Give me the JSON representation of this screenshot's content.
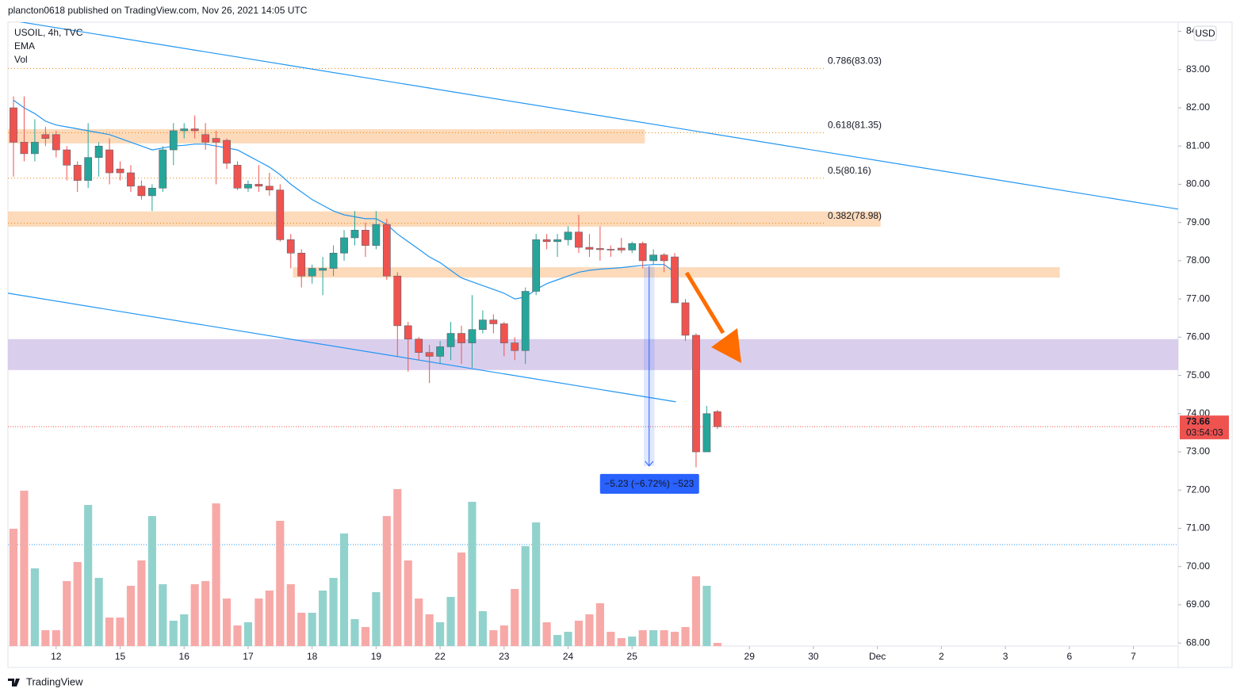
{
  "header": "plancton0618 published on TradingView.com, Nov 26, 2021 14:05 UTC",
  "footer": "TradingView",
  "chart_data": {
    "type": "candlestick",
    "legend": [
      "USOIL, 4h, TVC",
      "EMA",
      "Vol"
    ],
    "currency": "USD",
    "up_color": "#26a69a",
    "down_color": "#ef5350",
    "volume_up_color": "#92d2cc",
    "volume_down_color": "#f7a9a7",
    "ema_color": "#2196f3",
    "xlim": [
      -0.52,
      109.2
    ],
    "ylim": [
      67.92,
      84.24
    ],
    "vlim": [
      0,
      100
    ],
    "yticks": [
      {
        "value": 68,
        "label": "68.00"
      },
      {
        "value": 69,
        "label": "69.00"
      },
      {
        "value": 70,
        "label": "70.00"
      },
      {
        "value": 71,
        "label": "71.00"
      },
      {
        "value": 72,
        "label": "72.00"
      },
      {
        "value": 73,
        "label": "73.00"
      },
      {
        "value": 74,
        "label": "74.00"
      },
      {
        "value": 75,
        "label": "75.00"
      },
      {
        "value": 76,
        "label": "76.00"
      },
      {
        "value": 77,
        "label": "77.00"
      },
      {
        "value": 78,
        "label": "78.00"
      },
      {
        "value": 79,
        "label": "79.00"
      },
      {
        "value": 80,
        "label": "80.00"
      },
      {
        "value": 81,
        "label": "81.00"
      },
      {
        "value": 82,
        "label": "82.00"
      },
      {
        "value": 83,
        "label": "83.00"
      },
      {
        "value": 84,
        "label": "84.00"
      }
    ],
    "xticks": [
      {
        "value": 4,
        "label": "12"
      },
      {
        "value": 10,
        "label": "15"
      },
      {
        "value": 16,
        "label": "16"
      },
      {
        "value": 22,
        "label": "17"
      },
      {
        "value": 28,
        "label": "18"
      },
      {
        "value": 34,
        "label": "19"
      },
      {
        "value": 40,
        "label": "22"
      },
      {
        "value": 46,
        "label": "23"
      },
      {
        "value": 52,
        "label": "24"
      },
      {
        "value": 58,
        "label": "25"
      },
      {
        "value": 69,
        "label": "29"
      },
      {
        "value": 75,
        "label": "30"
      },
      {
        "value": 81,
        "label": "Dec"
      },
      {
        "value": 87,
        "label": "2"
      },
      {
        "value": 93,
        "label": "3"
      },
      {
        "value": 99,
        "label": "6"
      },
      {
        "value": 105,
        "label": "7"
      }
    ],
    "x": [
      0,
      1,
      2,
      3,
      4,
      5,
      6,
      7,
      8,
      9,
      10,
      11,
      12,
      13,
      14,
      15,
      16,
      17,
      18,
      19,
      20,
      21,
      22,
      23,
      24,
      25,
      26,
      27,
      28,
      29,
      30,
      31,
      32,
      33,
      34,
      35,
      36,
      37,
      38,
      39,
      40,
      41,
      42,
      43,
      44,
      45,
      46,
      47,
      48,
      49,
      50,
      51,
      52,
      53,
      54,
      55,
      56,
      57,
      58,
      59,
      60,
      61,
      62,
      63,
      64,
      65,
      66
    ],
    "open": [
      82.0,
      81.1,
      80.8,
      81.3,
      81.3,
      80.9,
      80.5,
      80.1,
      80.7,
      80.9,
      80.4,
      80.3,
      79.95,
      79.7,
      79.9,
      80.9,
      81.4,
      81.45,
      81.3,
      81.2,
      81.15,
      80.5,
      79.9,
      80.0,
      79.95,
      79.85,
      78.55,
      78.2,
      77.6,
      77.75,
      77.8,
      78.2,
      78.6,
      78.8,
      78.4,
      78.95,
      77.6,
      76.3,
      75.95,
      75.6,
      75.5,
      75.75,
      76.1,
      75.85,
      76.2,
      76.45,
      76.35,
      75.85,
      75.65,
      77.2,
      78.55,
      78.5,
      78.55,
      78.75,
      78.35,
      78.32,
      78.3,
      78.33,
      78.28,
      78.45,
      78.0,
      78.15,
      78.1,
      76.9,
      76.05,
      73.0,
      74.05
    ],
    "high": [
      82.3,
      82.3,
      81.7,
      81.5,
      81.4,
      81.0,
      80.6,
      81.6,
      81.1,
      81.2,
      80.6,
      80.5,
      80.1,
      80.0,
      81.0,
      81.6,
      81.6,
      81.8,
      81.6,
      81.4,
      81.2,
      80.6,
      80.1,
      80.5,
      80.3,
      80.0,
      78.7,
      78.3,
      77.9,
      78.1,
      78.4,
      78.8,
      79.3,
      79.0,
      79.3,
      79.1,
      77.7,
      76.4,
      76.0,
      75.8,
      75.9,
      76.4,
      76.3,
      77.1,
      76.7,
      76.6,
      76.4,
      76.0,
      77.3,
      78.7,
      78.7,
      78.7,
      78.9,
      79.2,
      78.7,
      78.9,
      78.4,
      78.6,
      78.5,
      78.5,
      78.3,
      78.2,
      78.2,
      77.0,
      76.1,
      74.2,
      74.1
    ],
    "low": [
      80.2,
      80.6,
      80.6,
      81.0,
      80.7,
      80.1,
      79.8,
      79.9,
      80.2,
      80.0,
      80.1,
      79.8,
      79.6,
      79.3,
      79.8,
      80.5,
      81.2,
      81.2,
      80.9,
      80.0,
      80.4,
      79.85,
      79.8,
      79.8,
      79.7,
      78.5,
      77.8,
      77.3,
      77.4,
      77.1,
      77.6,
      78.0,
      78.4,
      78.1,
      78.3,
      77.5,
      75.5,
      75.1,
      75.4,
      74.8,
      75.3,
      75.4,
      75.3,
      75.2,
      76.1,
      76.1,
      75.5,
      75.4,
      75.3,
      77.1,
      78.3,
      78.1,
      78.4,
      78.2,
      78.1,
      78.0,
      78.1,
      78.2,
      78.2,
      77.8,
      77.9,
      77.7,
      76.9,
      75.9,
      72.6,
      73.0,
      73.6
    ],
    "close": [
      81.1,
      80.8,
      81.1,
      81.2,
      80.9,
      80.5,
      80.1,
      80.7,
      81.0,
      80.3,
      80.3,
      79.95,
      79.7,
      79.9,
      80.9,
      81.4,
      81.45,
      81.4,
      81.1,
      81.1,
      80.55,
      79.9,
      80.0,
      79.95,
      79.85,
      78.55,
      78.2,
      77.6,
      77.8,
      77.8,
      78.2,
      78.6,
      78.8,
      78.4,
      78.95,
      77.6,
      76.3,
      75.95,
      75.6,
      75.5,
      75.75,
      76.1,
      75.85,
      76.2,
      76.45,
      76.35,
      75.85,
      75.65,
      77.2,
      78.55,
      78.5,
      78.55,
      78.75,
      78.35,
      78.3,
      78.29,
      78.28,
      78.28,
      78.45,
      78.0,
      78.15,
      78.0,
      76.9,
      76.05,
      73.0,
      74.0,
      73.66
    ],
    "volume": [
      74,
      98,
      49,
      10,
      10,
      41,
      53,
      89,
      43,
      18,
      18,
      38,
      54,
      82,
      39,
      16,
      20,
      39,
      41,
      90,
      30,
      13,
      15,
      30,
      35,
      79,
      39,
      21,
      21,
      35,
      43,
      71,
      17,
      12,
      34,
      82,
      99,
      54,
      30,
      20,
      15,
      31,
      59,
      91,
      22,
      10,
      13,
      36,
      63,
      78,
      15,
      7,
      9,
      16,
      20,
      27,
      9,
      5,
      6,
      10,
      10,
      10,
      9,
      12,
      44,
      38,
      2
    ],
    "ema": [
      82.2,
      82.0,
      81.85,
      81.65,
      81.55,
      81.5,
      81.45,
      81.4,
      81.35,
      81.3,
      81.2,
      81.1,
      81.0,
      80.9,
      80.95,
      81.0,
      81.02,
      81.05,
      81.05,
      81.0,
      80.95,
      80.9,
      80.75,
      80.6,
      80.45,
      80.25,
      80.0,
      79.8,
      79.6,
      79.45,
      79.3,
      79.2,
      79.15,
      79.1,
      79.1,
      78.95,
      78.7,
      78.5,
      78.3,
      78.1,
      77.95,
      77.75,
      77.55,
      77.45,
      77.35,
      77.25,
      77.15,
      77.0,
      77.05,
      77.25,
      77.4,
      77.5,
      77.6,
      77.7,
      77.75,
      77.78,
      77.8,
      77.82,
      77.85,
      77.88,
      77.9,
      77.9,
      77.7,
      null,
      null,
      null,
      null
    ],
    "fib_levels": [
      {
        "value": 83.03,
        "label": "0.786(83.03)"
      },
      {
        "value": 81.35,
        "label": "0.618(81.35)"
      },
      {
        "value": 80.16,
        "label": "0.5(80.16)"
      },
      {
        "value": 78.98,
        "label": "0.382(78.98)"
      }
    ],
    "fib_color": "#f57c00",
    "zones": [
      {
        "x": [
          -0.52,
          59.2
        ],
        "y": [
          81.07,
          81.44
        ],
        "color": "#fbd3ae"
      },
      {
        "x": [
          -0.52,
          81.3
        ],
        "y": [
          78.89,
          79.29
        ],
        "color": "#fbd3ae"
      },
      {
        "x": [
          26.2,
          98.1
        ],
        "y": [
          77.56,
          77.83
        ],
        "color": "#fbd3ae"
      },
      {
        "x": [
          -0.52,
          109.2
        ],
        "y": [
          75.14,
          75.95
        ],
        "color": "#d4c6ea"
      }
    ],
    "trend_lines": [
      {
        "x": [
          -0.52,
          109.2
        ],
        "y": [
          84.3,
          79.35
        ],
        "color": "#2196f3"
      },
      {
        "x": [
          -0.52,
          62.1
        ],
        "y": [
          77.15,
          74.31
        ],
        "color": "#2196f3"
      }
    ],
    "measure": {
      "x": [
        59.1,
        60.1
      ],
      "from": 77.86,
      "to": 72.63,
      "label": "−5.23 (−6.72%) −523",
      "color": "#2962ff"
    },
    "last_price": 73.66,
    "countdown": "03:54:03"
  }
}
